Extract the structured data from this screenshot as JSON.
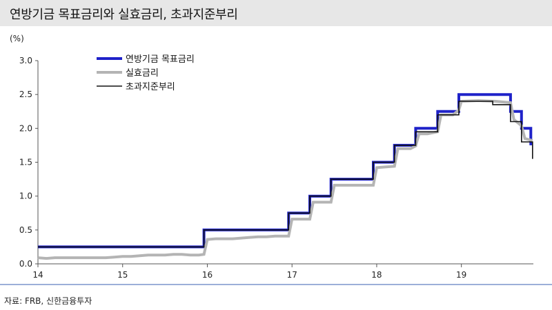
{
  "title": "연방기금 목표금리와 실효금리, 초과지준부리",
  "source": "자료: FRB, 신한금융투자",
  "chart_data": {
    "type": "line",
    "unit_label": "(%)",
    "xlim": [
      14,
      19.85
    ],
    "ylim": [
      0,
      3.0
    ],
    "x_ticks": [
      {
        "value": 14,
        "label": "14"
      },
      {
        "value": 15,
        "label": "15"
      },
      {
        "value": 16,
        "label": "16"
      },
      {
        "value": 17,
        "label": "17"
      },
      {
        "value": 18,
        "label": "18"
      },
      {
        "value": 19,
        "label": "19"
      }
    ],
    "y_ticks": [
      {
        "value": 0,
        "label": "0.0"
      },
      {
        "value": 0.5,
        "label": "0.5"
      },
      {
        "value": 1.0,
        "label": "1.0"
      },
      {
        "value": 1.5,
        "label": "1.5"
      },
      {
        "value": 2.0,
        "label": "2.0"
      },
      {
        "value": 2.5,
        "label": "2.5"
      },
      {
        "value": 3.0,
        "label": "3.0"
      }
    ],
    "grid": false,
    "legend_position": "top-left",
    "series": [
      {
        "name": "연방기금 목표금리",
        "color": "#1f22c9",
        "style": "step",
        "points": [
          [
            14,
            0.25
          ],
          [
            15.96,
            0.25
          ],
          [
            15.96,
            0.5
          ],
          [
            16.96,
            0.5
          ],
          [
            16.96,
            0.75
          ],
          [
            17.21,
            0.75
          ],
          [
            17.21,
            1.0
          ],
          [
            17.46,
            1.0
          ],
          [
            17.46,
            1.25
          ],
          [
            17.96,
            1.25
          ],
          [
            17.96,
            1.5
          ],
          [
            18.21,
            1.5
          ],
          [
            18.21,
            1.75
          ],
          [
            18.46,
            1.75
          ],
          [
            18.46,
            2.0
          ],
          [
            18.72,
            2.0
          ],
          [
            18.72,
            2.25
          ],
          [
            18.97,
            2.25
          ],
          [
            18.97,
            2.5
          ],
          [
            19.58,
            2.5
          ],
          [
            19.58,
            2.25
          ],
          [
            19.71,
            2.25
          ],
          [
            19.71,
            2.0
          ],
          [
            19.82,
            2.0
          ],
          [
            19.82,
            1.75
          ]
        ]
      },
      {
        "name": "실효금리",
        "color": "#b4b4b4",
        "style": "line",
        "points": [
          [
            14,
            0.09
          ],
          [
            14.1,
            0.08
          ],
          [
            14.2,
            0.09
          ],
          [
            14.3,
            0.09
          ],
          [
            14.4,
            0.09
          ],
          [
            14.5,
            0.09
          ],
          [
            14.6,
            0.09
          ],
          [
            14.7,
            0.09
          ],
          [
            14.8,
            0.09
          ],
          [
            14.9,
            0.1
          ],
          [
            15.0,
            0.11
          ],
          [
            15.1,
            0.11
          ],
          [
            15.2,
            0.12
          ],
          [
            15.3,
            0.13
          ],
          [
            15.4,
            0.13
          ],
          [
            15.5,
            0.13
          ],
          [
            15.6,
            0.14
          ],
          [
            15.7,
            0.14
          ],
          [
            15.8,
            0.13
          ],
          [
            15.9,
            0.13
          ],
          [
            15.96,
            0.14
          ],
          [
            16.0,
            0.36
          ],
          [
            16.1,
            0.37
          ],
          [
            16.2,
            0.37
          ],
          [
            16.3,
            0.37
          ],
          [
            16.4,
            0.38
          ],
          [
            16.5,
            0.39
          ],
          [
            16.6,
            0.4
          ],
          [
            16.7,
            0.4
          ],
          [
            16.8,
            0.41
          ],
          [
            16.96,
            0.41
          ],
          [
            17.0,
            0.66
          ],
          [
            17.1,
            0.66
          ],
          [
            17.21,
            0.66
          ],
          [
            17.25,
            0.91
          ],
          [
            17.4,
            0.91
          ],
          [
            17.46,
            0.91
          ],
          [
            17.5,
            1.16
          ],
          [
            17.7,
            1.16
          ],
          [
            17.96,
            1.16
          ],
          [
            18.0,
            1.42
          ],
          [
            18.1,
            1.43
          ],
          [
            18.21,
            1.44
          ],
          [
            18.25,
            1.7
          ],
          [
            18.4,
            1.7
          ],
          [
            18.46,
            1.74
          ],
          [
            18.5,
            1.92
          ],
          [
            18.6,
            1.92
          ],
          [
            18.72,
            1.95
          ],
          [
            18.76,
            2.2
          ],
          [
            18.9,
            2.2
          ],
          [
            18.97,
            2.27
          ],
          [
            19.0,
            2.4
          ],
          [
            19.2,
            2.41
          ],
          [
            19.4,
            2.4
          ],
          [
            19.58,
            2.38
          ],
          [
            19.62,
            2.13
          ],
          [
            19.71,
            2.04
          ],
          [
            19.75,
            1.85
          ],
          [
            19.84,
            1.82
          ]
        ]
      },
      {
        "name": "초과지준부리",
        "color": "#111111",
        "style": "step",
        "points": [
          [
            14,
            0.25
          ],
          [
            15.96,
            0.25
          ],
          [
            15.96,
            0.5
          ],
          [
            16.96,
            0.5
          ],
          [
            16.96,
            0.75
          ],
          [
            17.21,
            0.75
          ],
          [
            17.21,
            1.0
          ],
          [
            17.46,
            1.0
          ],
          [
            17.46,
            1.25
          ],
          [
            17.96,
            1.25
          ],
          [
            17.96,
            1.5
          ],
          [
            18.21,
            1.5
          ],
          [
            18.21,
            1.75
          ],
          [
            18.46,
            1.75
          ],
          [
            18.46,
            1.95
          ],
          [
            18.72,
            1.95
          ],
          [
            18.72,
            2.2
          ],
          [
            18.97,
            2.2
          ],
          [
            18.97,
            2.4
          ],
          [
            19.37,
            2.4
          ],
          [
            19.37,
            2.35
          ],
          [
            19.58,
            2.35
          ],
          [
            19.58,
            2.1
          ],
          [
            19.71,
            2.1
          ],
          [
            19.71,
            1.8
          ],
          [
            19.84,
            1.8
          ],
          [
            19.84,
            1.55
          ]
        ]
      }
    ]
  }
}
